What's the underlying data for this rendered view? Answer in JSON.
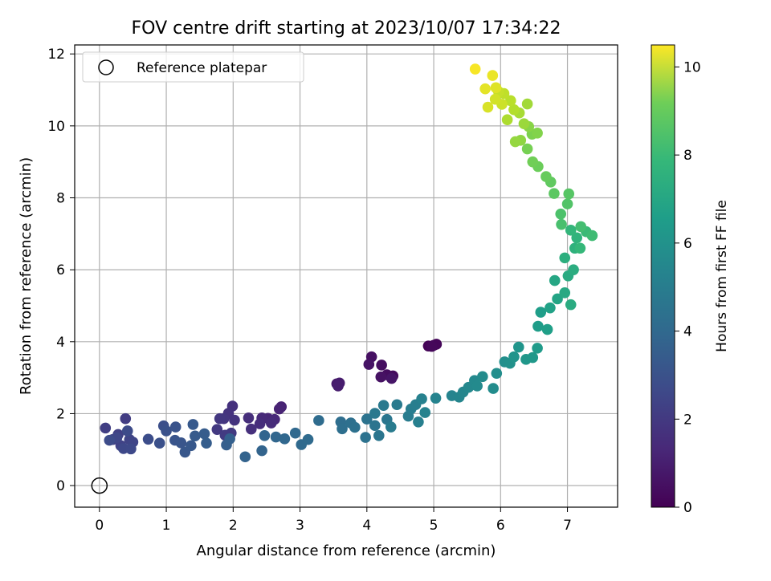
{
  "chart_data": {
    "type": "scatter",
    "title": "FOV centre drift starting at 2023/10/07 17:34:22",
    "xlabel": "Angular distance from reference (arcmin)",
    "ylabel": "Rotation from reference (arcmin)",
    "xlim": [
      -0.37,
      7.75
    ],
    "ylim": [
      -0.6,
      12.25
    ],
    "xticks": [
      0,
      1,
      2,
      3,
      4,
      5,
      6,
      7
    ],
    "xtick_labels": [
      "0",
      "1",
      "2",
      "3",
      "4",
      "5",
      "6",
      "7"
    ],
    "yticks": [
      0,
      2,
      4,
      6,
      8,
      10,
      12
    ],
    "ytick_labels": [
      "0",
      "2",
      "4",
      "6",
      "8",
      "10",
      "12"
    ],
    "grid": true,
    "legend": {
      "position": "top-left",
      "entries": [
        "Reference platepar"
      ]
    },
    "reference_point": {
      "x": 0,
      "y": 0
    },
    "colorbar": {
      "label": "Hours from first FF file",
      "range": [
        0,
        10.5
      ],
      "ticks": [
        0,
        2,
        4,
        6,
        8,
        10
      ],
      "tick_labels": [
        "0",
        "2",
        "4",
        "6",
        "8",
        "10"
      ],
      "colormap": "viridis"
    },
    "points": [
      [
        4.92,
        3.88,
        0.05
      ],
      [
        5.0,
        3.9,
        0.1
      ],
      [
        5.04,
        3.93,
        0.15
      ],
      [
        4.97,
        3.87,
        0.2
      ],
      [
        4.39,
        3.05,
        0.3
      ],
      [
        4.3,
        3.08,
        0.35
      ],
      [
        4.22,
        3.35,
        0.4
      ],
      [
        4.07,
        3.58,
        0.45
      ],
      [
        4.21,
        3.02,
        0.5
      ],
      [
        4.03,
        3.37,
        0.55
      ],
      [
        4.37,
        2.98,
        0.6
      ],
      [
        3.55,
        2.83,
        0.75
      ],
      [
        3.59,
        2.85,
        0.8
      ],
      [
        3.57,
        2.77,
        0.85
      ],
      [
        2.72,
        2.19,
        1.0
      ],
      [
        2.69,
        2.13,
        1.05
      ],
      [
        2.52,
        1.87,
        1.15
      ],
      [
        2.62,
        1.84,
        1.2
      ],
      [
        2.43,
        1.88,
        1.25
      ],
      [
        2.57,
        1.74,
        1.3
      ],
      [
        2.4,
        1.72,
        1.35
      ],
      [
        2.23,
        1.88,
        1.4
      ],
      [
        2.27,
        1.57,
        1.45
      ],
      [
        1.99,
        2.21,
        1.5
      ],
      [
        1.93,
        2.01,
        1.55
      ],
      [
        2.02,
        1.82,
        1.6
      ],
      [
        1.86,
        1.86,
        1.65
      ],
      [
        1.8,
        1.86,
        1.7
      ],
      [
        1.76,
        1.56,
        1.75
      ],
      [
        1.97,
        1.46,
        1.8
      ],
      [
        1.88,
        1.4,
        1.85
      ],
      [
        0.39,
        1.86,
        1.9
      ],
      [
        0.09,
        1.6,
        1.95
      ],
      [
        0.28,
        1.42,
        2.0
      ],
      [
        0.2,
        1.28,
        2.05
      ],
      [
        0.32,
        1.11,
        2.1
      ],
      [
        0.45,
        1.28,
        2.15
      ],
      [
        0.5,
        1.21,
        2.2
      ],
      [
        0.26,
        1.33,
        2.25
      ],
      [
        0.36,
        1.03,
        2.3
      ],
      [
        0.47,
        1.02,
        2.35
      ],
      [
        0.42,
        1.52,
        2.4
      ],
      [
        0.15,
        1.26,
        2.45
      ],
      [
        0.73,
        1.29,
        2.5
      ],
      [
        0.96,
        1.66,
        2.55
      ],
      [
        0.9,
        1.18,
        2.6
      ],
      [
        1.0,
        1.52,
        2.65
      ],
      [
        1.14,
        1.63,
        2.7
      ],
      [
        1.13,
        1.26,
        2.75
      ],
      [
        1.22,
        1.19,
        2.8
      ],
      [
        1.28,
        0.93,
        2.85
      ],
      [
        1.37,
        1.11,
        2.9
      ],
      [
        1.4,
        1.7,
        2.95
      ],
      [
        1.43,
        1.38,
        3.0
      ],
      [
        1.57,
        1.44,
        3.05
      ],
      [
        1.6,
        1.18,
        3.1
      ],
      [
        1.9,
        1.13,
        3.15
      ],
      [
        1.95,
        1.3,
        3.2
      ],
      [
        2.18,
        0.8,
        3.3
      ],
      [
        2.43,
        0.97,
        3.35
      ],
      [
        2.47,
        1.39,
        3.4
      ],
      [
        2.64,
        1.35,
        3.45
      ],
      [
        2.77,
        1.3,
        3.5
      ],
      [
        2.93,
        1.46,
        3.55
      ],
      [
        3.02,
        1.14,
        3.6
      ],
      [
        3.12,
        1.28,
        3.65
      ],
      [
        3.28,
        1.81,
        3.7
      ],
      [
        3.61,
        1.77,
        3.75
      ],
      [
        3.63,
        1.58,
        3.8
      ],
      [
        3.76,
        1.74,
        3.85
      ],
      [
        3.82,
        1.62,
        3.9
      ],
      [
        3.98,
        1.34,
        3.95
      ],
      [
        4.0,
        1.85,
        4.0
      ],
      [
        4.12,
        1.67,
        4.05
      ],
      [
        4.18,
        1.39,
        4.1
      ],
      [
        4.3,
        1.84,
        4.15
      ],
      [
        4.12,
        2.01,
        4.2
      ],
      [
        4.25,
        2.23,
        4.25
      ],
      [
        4.45,
        2.25,
        4.3
      ],
      [
        4.36,
        1.63,
        4.35
      ],
      [
        4.62,
        1.93,
        4.4
      ],
      [
        4.66,
        2.13,
        4.45
      ],
      [
        4.73,
        2.25,
        4.5
      ],
      [
        4.77,
        1.77,
        4.55
      ],
      [
        4.82,
        2.41,
        4.6
      ],
      [
        4.87,
        2.03,
        4.65
      ],
      [
        5.03,
        2.43,
        4.7
      ],
      [
        5.27,
        2.5,
        4.75
      ],
      [
        5.38,
        2.46,
        4.8
      ],
      [
        5.44,
        2.6,
        4.85
      ],
      [
        5.52,
        2.73,
        4.9
      ],
      [
        5.61,
        2.92,
        4.95
      ],
      [
        5.65,
        2.77,
        5.0
      ],
      [
        5.73,
        3.03,
        5.05
      ],
      [
        5.89,
        2.7,
        5.1
      ],
      [
        5.94,
        3.12,
        5.15
      ],
      [
        6.06,
        3.44,
        5.2
      ],
      [
        6.14,
        3.4,
        5.3
      ],
      [
        6.2,
        3.58,
        5.4
      ],
      [
        6.27,
        3.85,
        5.45
      ],
      [
        6.38,
        3.51,
        5.55
      ],
      [
        6.48,
        3.56,
        5.6
      ],
      [
        6.55,
        3.82,
        5.7
      ],
      [
        6.56,
        4.43,
        5.8
      ],
      [
        6.6,
        4.82,
        5.85
      ],
      [
        6.7,
        4.34,
        5.9
      ],
      [
        6.74,
        4.94,
        6.0
      ],
      [
        6.85,
        5.19,
        6.1
      ],
      [
        6.81,
        5.7,
        6.2
      ],
      [
        6.96,
        5.36,
        6.3
      ],
      [
        7.01,
        5.83,
        6.4
      ],
      [
        7.05,
        5.03,
        6.45
      ],
      [
        7.09,
        6.0,
        6.5
      ],
      [
        6.96,
        6.33,
        6.6
      ],
      [
        7.11,
        6.6,
        6.7
      ],
      [
        7.14,
        6.89,
        6.8
      ],
      [
        7.05,
        7.1,
        6.9
      ],
      [
        7.19,
        6.6,
        7.0
      ],
      [
        7.28,
        7.06,
        7.1
      ],
      [
        7.37,
        6.95,
        7.2
      ],
      [
        7.2,
        7.2,
        7.3
      ],
      [
        6.91,
        7.26,
        7.4
      ],
      [
        6.9,
        7.55,
        7.5
      ],
      [
        7.0,
        7.83,
        7.6
      ],
      [
        7.02,
        8.11,
        7.7
      ],
      [
        6.8,
        8.12,
        7.8
      ],
      [
        6.75,
        8.44,
        7.9
      ],
      [
        6.68,
        8.59,
        8.0
      ],
      [
        6.56,
        8.87,
        8.1
      ],
      [
        6.48,
        9.0,
        8.2
      ],
      [
        6.4,
        9.36,
        8.3
      ],
      [
        6.47,
        9.77,
        8.4
      ],
      [
        6.55,
        9.8,
        8.5
      ],
      [
        6.42,
        9.98,
        8.6
      ],
      [
        6.3,
        9.6,
        8.7
      ],
      [
        6.22,
        9.56,
        8.8
      ],
      [
        6.35,
        10.06,
        8.9
      ],
      [
        6.4,
        10.61,
        9.0
      ],
      [
        6.28,
        10.36,
        9.1
      ],
      [
        6.1,
        10.17,
        9.2
      ],
      [
        6.2,
        10.45,
        9.3
      ],
      [
        6.15,
        10.7,
        9.4
      ],
      [
        6.05,
        10.9,
        9.5
      ],
      [
        5.97,
        10.95,
        9.6
      ],
      [
        6.02,
        10.6,
        9.7
      ],
      [
        5.92,
        10.74,
        9.8
      ],
      [
        5.81,
        10.52,
        9.9
      ],
      [
        5.93,
        11.06,
        10.0
      ],
      [
        5.77,
        11.03,
        10.1
      ],
      [
        5.88,
        11.4,
        10.2
      ],
      [
        5.62,
        11.58,
        10.4
      ]
    ]
  }
}
